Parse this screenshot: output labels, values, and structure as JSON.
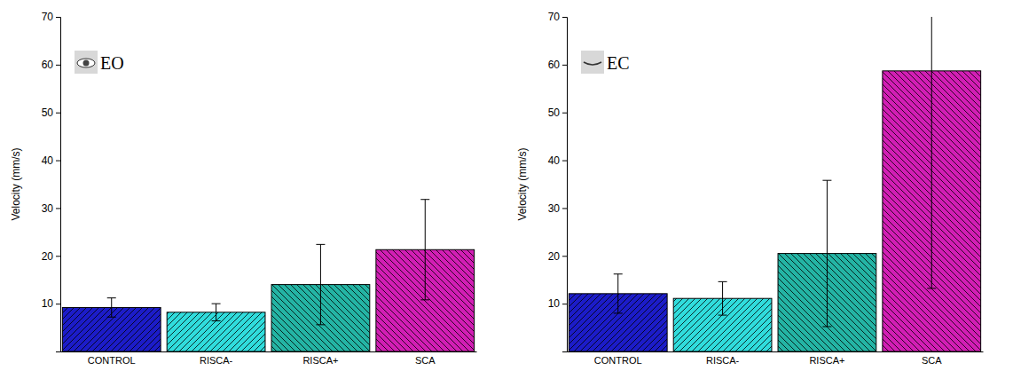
{
  "chart_data": [
    {
      "type": "bar",
      "title": "EO",
      "y_label": "Velocity (mm/s)",
      "categories": [
        "CONTROL",
        "RISCA-",
        "RISCA+",
        "SCA"
      ],
      "values": [
        9.2,
        8.2,
        14.0,
        21.3
      ],
      "errors": [
        2.0,
        1.8,
        8.4,
        10.5
      ],
      "colors": [
        "#1c1cc8",
        "#30dcdc",
        "#24b4a4",
        "#d21eb4"
      ],
      "ylim": [
        0,
        70
      ],
      "yticks": [
        10,
        20,
        30,
        40,
        50,
        60,
        70
      ]
    },
    {
      "type": "bar",
      "title": "EC",
      "y_label": "Velocity (mm/s)",
      "categories": [
        "CONTROL",
        "RISCA-",
        "RISCA+",
        "SCA"
      ],
      "values": [
        12.1,
        11.1,
        20.5,
        58.7
      ],
      "errors": [
        4.1,
        3.5,
        15.3,
        45.5
      ],
      "colors": [
        "#1c1cc8",
        "#30dcdc",
        "#24b4a4",
        "#d21eb4"
      ],
      "ylim": [
        0,
        70
      ],
      "yticks": [
        10,
        20,
        30,
        40,
        50,
        60,
        70
      ]
    }
  ]
}
